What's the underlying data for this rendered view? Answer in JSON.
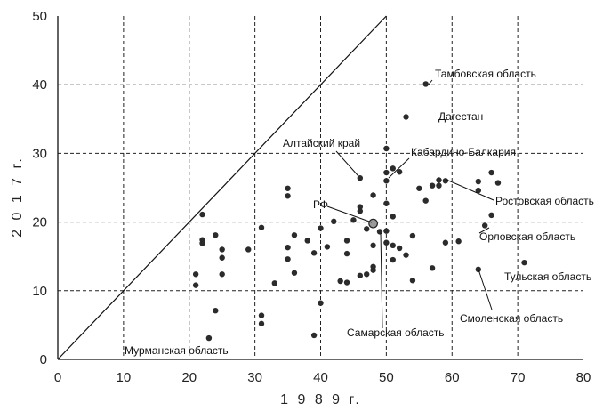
{
  "chart_data": {
    "type": "scatter",
    "title": "",
    "xlabel": "1 9 8 9 г.",
    "ylabel": "2 0 1 7 г.",
    "xlim": [
      0,
      80
    ],
    "ylim": [
      0,
      50
    ],
    "xticks": [
      "0",
      "10",
      "20",
      "30",
      "40",
      "50",
      "60",
      "70",
      "80"
    ],
    "yticks": [
      "0",
      "10",
      "20",
      "30",
      "40",
      "50"
    ],
    "grid": true,
    "diagonal_line": true,
    "points": [
      [
        21,
        12.4
      ],
      [
        21,
        10.8
      ],
      [
        22,
        21.1
      ],
      [
        22,
        17.4
      ],
      [
        22,
        16.9
      ],
      [
        23,
        3.1
      ],
      [
        24,
        18.1
      ],
      [
        24,
        7.1
      ],
      [
        25,
        14.8
      ],
      [
        25,
        12.4
      ],
      [
        25,
        16
      ],
      [
        29,
        16
      ],
      [
        31,
        19.2
      ],
      [
        31,
        6.4
      ],
      [
        31,
        5.2
      ],
      [
        33,
        11.1
      ],
      [
        35,
        24.9
      ],
      [
        35,
        23.8
      ],
      [
        35,
        16.3
      ],
      [
        35,
        14.6
      ],
      [
        36,
        18.1
      ],
      [
        36,
        12.6
      ],
      [
        38,
        17.3
      ],
      [
        39,
        15.5
      ],
      [
        39,
        3.5
      ],
      [
        40,
        19.1
      ],
      [
        40,
        8.2
      ],
      [
        41,
        16.4
      ],
      [
        42,
        20.1
      ],
      [
        43,
        11.4
      ],
      [
        44,
        11.2
      ],
      [
        44,
        17.3
      ],
      [
        44,
        15.4
      ],
      [
        45,
        20.3
      ],
      [
        46,
        26.4
      ],
      [
        46,
        22.2
      ],
      [
        46,
        21.6
      ],
      [
        46,
        12.2
      ],
      [
        47,
        19
      ],
      [
        47,
        12.4
      ],
      [
        48,
        23.9
      ],
      [
        48,
        16.6
      ],
      [
        48,
        13.5
      ],
      [
        48,
        13
      ],
      [
        49,
        18.6
      ],
      [
        50,
        30.7
      ],
      [
        50,
        27.2
      ],
      [
        50,
        26
      ],
      [
        50,
        22.7
      ],
      [
        50,
        18.7
      ],
      [
        50,
        17
      ],
      [
        51,
        27.8
      ],
      [
        51,
        20.8
      ],
      [
        51,
        16.6
      ],
      [
        51,
        14.5
      ],
      [
        52,
        27.3
      ],
      [
        52,
        16.2
      ],
      [
        53,
        35.3
      ],
      [
        53,
        15.2
      ],
      [
        54,
        18
      ],
      [
        54,
        11.5
      ],
      [
        55,
        24.9
      ],
      [
        56,
        40.1
      ],
      [
        56,
        23.1
      ],
      [
        57,
        25.3
      ],
      [
        57,
        13.3
      ],
      [
        58,
        26.1
      ],
      [
        58,
        25.3
      ],
      [
        59,
        26
      ],
      [
        59,
        17
      ],
      [
        61,
        17.2
      ],
      [
        64,
        25.9
      ],
      [
        64,
        24.6
      ],
      [
        64,
        13.1
      ],
      [
        65,
        19.5
      ],
      [
        66,
        27.2
      ],
      [
        66,
        21
      ],
      [
        67,
        25.7
      ],
      [
        71,
        14.1
      ]
    ],
    "highlight_point": {
      "label": "РФ",
      "x": 48,
      "y": 19.8
    },
    "annotations": [
      {
        "text": "Тамбовская область"
      },
      {
        "text": "Дагестан"
      },
      {
        "text": "Алтайский край"
      },
      {
        "text": "Кабардино-Балкария"
      },
      {
        "text": "РФ"
      },
      {
        "text": "Ростовская область"
      },
      {
        "text": "Орловская область"
      },
      {
        "text": "Тульская область"
      },
      {
        "text": "Смоленская область"
      },
      {
        "text": "Самарская область"
      },
      {
        "text": "Мурманская область"
      }
    ]
  }
}
